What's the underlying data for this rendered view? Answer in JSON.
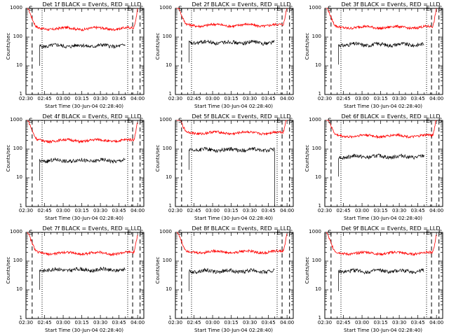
{
  "chart_data": {
    "type": "line",
    "y_scale": "log",
    "ylim": [
      1,
      1000
    ],
    "xlim": [
      "02:30",
      "04:05"
    ],
    "ylabel": "Counts/sec",
    "xlabel": "Start Time (30-Jun-04 02:28:40)",
    "y_ticks": [
      "1000",
      "100",
      "10",
      "1"
    ],
    "x_ticks": [
      "02:30",
      "02:45",
      "03:00",
      "03:15",
      "03:30",
      "03:45",
      "04:00"
    ],
    "legend": {
      "black": "Events",
      "red": "LLD"
    },
    "colors": {
      "events": "#000000",
      "lld": "#ff0000"
    },
    "start_marker": "S",
    "end_marker": "E",
    "start_time": "02:38",
    "end_time": "03:59",
    "spectra": [
      {
        "title": "Det 1f BLACK = Events, RED = LLD",
        "events_level": 50,
        "lld_level": 200,
        "markers": {
          "s_dashed": "02:35",
          "s_dotted": "02:43",
          "e_dotted": "03:52",
          "e_dashed": "03:56",
          "s2_dashed": "04:02"
        }
      },
      {
        "title": "Det 2f BLACK = Events, RED = LLD",
        "events_level": 65,
        "lld_level": 260,
        "markers": {
          "s_dashed": "02:35",
          "s_dotted": "02:43",
          "e_dotted": "03:52",
          "e_dashed": "03:56",
          "s2_dashed": "04:02"
        }
      },
      {
        "title": "Det 3f BLACK = Events, RED = LLD",
        "events_level": 55,
        "lld_level": 220,
        "markers": {
          "s_dashed": "02:35",
          "s_dotted": "02:43",
          "e_dotted": "03:52",
          "e_dashed": "03:56",
          "s2_dashed": "04:02"
        }
      },
      {
        "title": "Det 4f BLACK = Events, RED = LLD",
        "events_level": 40,
        "lld_level": 200,
        "markers": {
          "s_dashed": "02:35",
          "s_dotted": "02:43",
          "e_dotted": "03:52",
          "e_dashed": "03:56",
          "s2_dashed": "04:02"
        }
      },
      {
        "title": "Det 5f BLACK = Events, RED = LLD",
        "events_level": 95,
        "lld_level": 370,
        "markers": {
          "s_dashed": "02:35",
          "s_dotted": "02:43",
          "e_dotted": "03:52",
          "e_dashed": "03:56",
          "s2_dashed": "04:02"
        }
      },
      {
        "title": "Det 6f BLACK = Events, RED = LLD",
        "events_level": 55,
        "lld_level": 290,
        "markers": {
          "s_dashed": "02:35",
          "s_dotted": "02:43",
          "e_dotted": "03:52",
          "e_dashed": "03:56",
          "s2_dashed": "04:02"
        }
      },
      {
        "title": "Det 7f BLACK = Events, RED = LLD",
        "events_level": 50,
        "lld_level": 190,
        "markers": {
          "s_dashed": "02:35",
          "s_dotted": "02:43",
          "e_dotted": "03:52",
          "e_dashed": "03:56",
          "s2_dashed": "04:02"
        }
      },
      {
        "title": "Det 8f BLACK = Events, RED = LLD",
        "events_level": 45,
        "lld_level": 210,
        "markers": {
          "s_dashed": "02:35",
          "s_dotted": "02:43",
          "e_dotted": "03:52",
          "e_dashed": "03:56",
          "s2_dashed": "04:02"
        }
      },
      {
        "title": "Det 9f BLACK = Events, RED = LLD",
        "events_level": 45,
        "lld_level": 190,
        "markers": {
          "s_dashed": "02:35",
          "s_dotted": "02:43",
          "e_dotted": "03:52",
          "e_dashed": "03:56",
          "s2_dashed": "04:02"
        }
      }
    ]
  }
}
